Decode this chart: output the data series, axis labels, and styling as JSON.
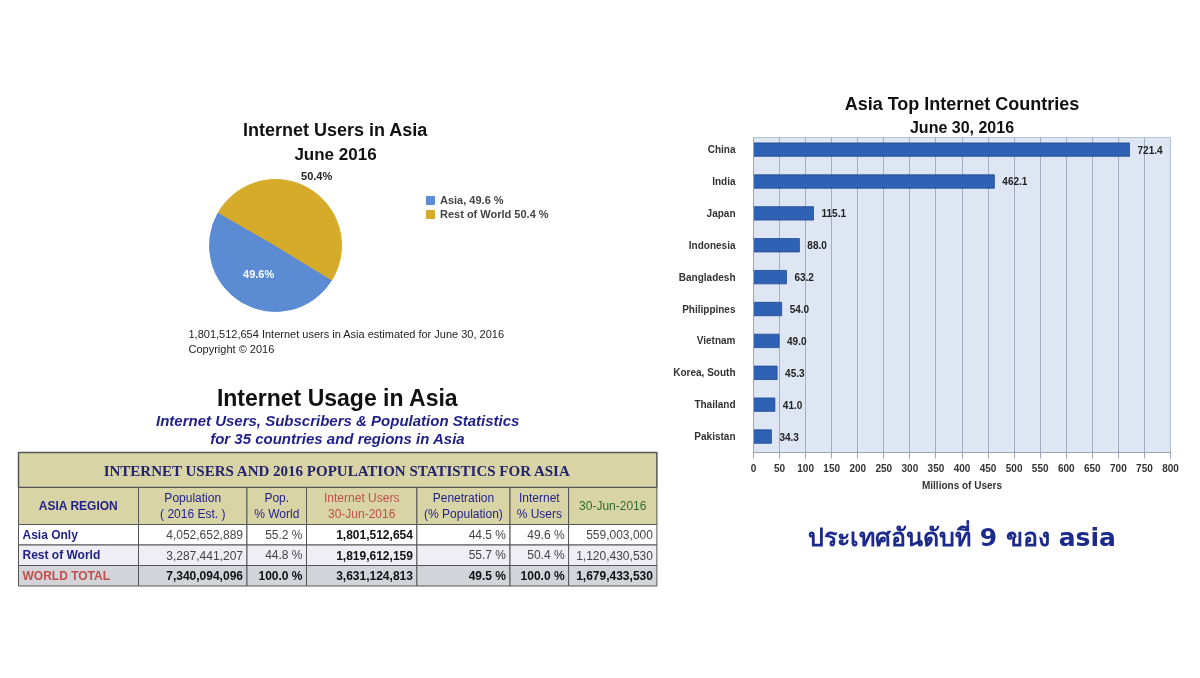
{
  "chart_data": [
    {
      "type": "pie",
      "title": "Internet Users in Asia",
      "subtitle": "June 2016",
      "categories": [
        "Asia, 49.6 %",
        "Rest of World 50.4 %"
      ],
      "values": [
        49.6,
        50.4
      ],
      "colors": [
        "#5b8bd3",
        "#d6ab2a"
      ],
      "value_labels": [
        "49.6%",
        "50.4%"
      ],
      "legend": "right",
      "annotations": [
        "1,801,512,654 Internet users in Asia estimated for June 30, 2016",
        "Copyright © 2016"
      ]
    },
    {
      "type": "other",
      "title": "Internet Usage in Asia",
      "subtitle": "Internet Users, Subscribers & Population Statistics\nfor 35 countries and regions in Asia",
      "annotations": [
        "INTERNET USERS AND 2016 POPULATION STATISTICS FOR ASIA"
      ],
      "ylabel": "ASIA REGION",
      "categories": [
        "Population\n( 2016 Est. )",
        "Pop.\n% World",
        "Internet Users\n30-Jun-2016",
        "Penetration\n(% Population)",
        "Internet\n% Users",
        "30-Jun-2016"
      ],
      "y_categories": [
        "Asia Only",
        "Rest of World",
        "WORLD TOTAL"
      ],
      "cell_labels": [
        [
          "4,052,652,889",
          "55.2 %",
          "1,801,512,654",
          "44.5 %",
          "49.6 %",
          "559,003,000"
        ],
        [
          "3,287,441,207",
          "44.8 %",
          "1,819,612,159",
          "55.7 %",
          "50.4 %",
          "1,120,430,530"
        ],
        [
          "7,340,094,096",
          "100.0 %",
          "3,631,124,813",
          "49.5 %",
          "100.0 %",
          "1,679,433,530"
        ]
      ]
    },
    {
      "type": "bar",
      "orientation": "horizontal",
      "title": "Asia Top Internet Countries",
      "subtitle": "June 30, 2016",
      "categories": [
        "China",
        "India",
        "Japan",
        "Indonesia",
        "Bangladesh",
        "Philippines",
        "Vietnam",
        "Korea, South",
        "Thailand",
        "Pakistan"
      ],
      "values": [
        721.4,
        462.1,
        115.1,
        88.0,
        63.2,
        54.0,
        49.0,
        45.3,
        41.0,
        34.3
      ],
      "value_labels": [
        "721.4",
        "462.1",
        "115.1",
        "88.0",
        "63.2",
        "54.0",
        "49.0",
        "45.3",
        "41.0",
        "34.3"
      ],
      "color": "#2f62b5",
      "xlim": [
        0,
        800
      ],
      "xticks": [
        0,
        50,
        100,
        150,
        200,
        250,
        300,
        350,
        400,
        450,
        500,
        550,
        600,
        650,
        700,
        750,
        800
      ],
      "xlabel": "Millions of Users",
      "grid": "x",
      "annotations": [
        "ประเทศอันดับที่ 9 ของ asia"
      ]
    }
  ]
}
